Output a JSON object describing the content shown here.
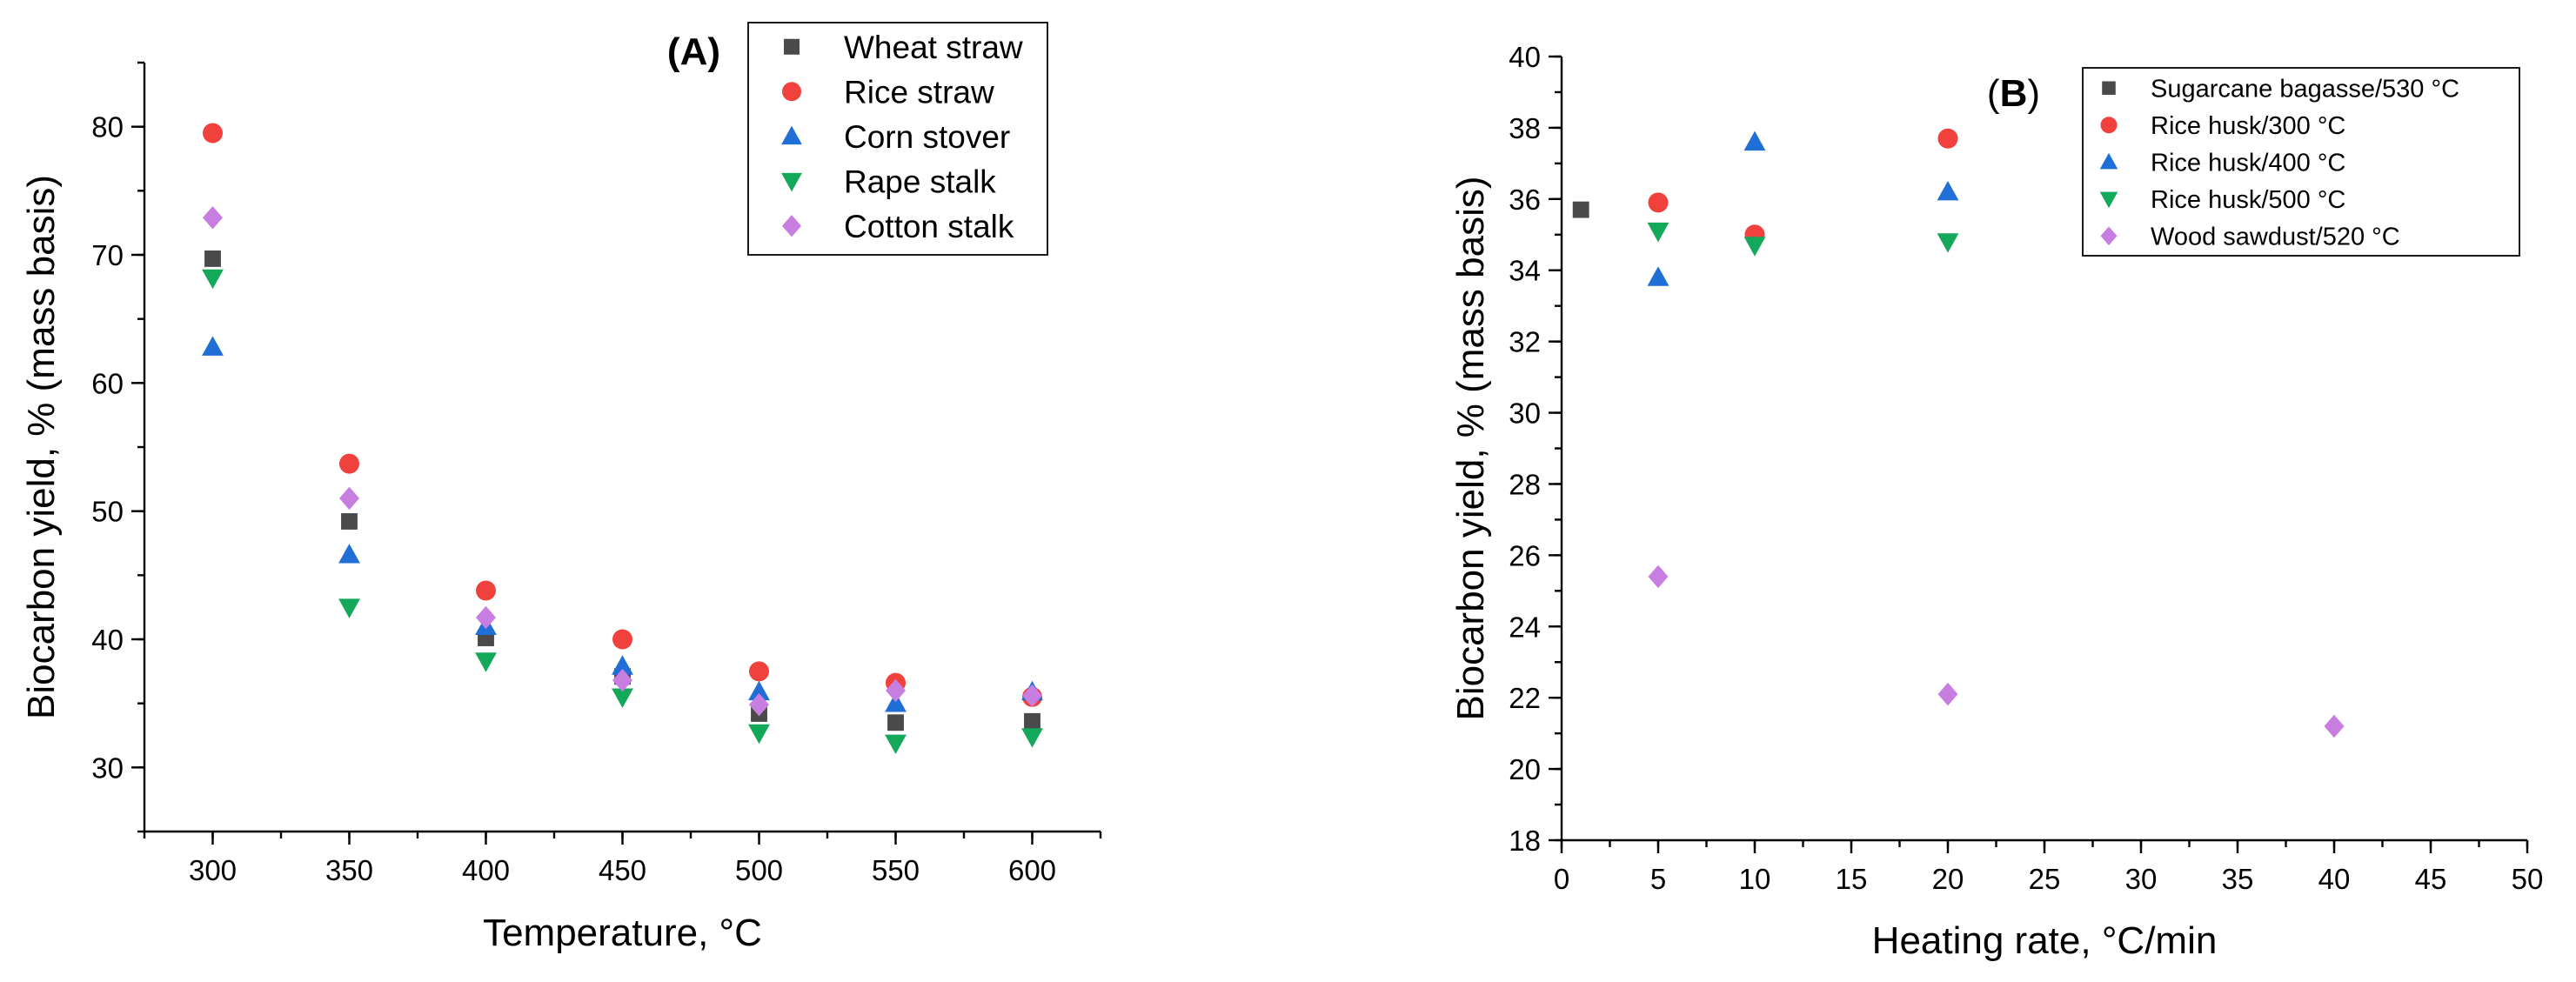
{
  "colors": {
    "square": "#4a4a4a",
    "circle": "#f0413c",
    "triangle_up": "#1f6fd6",
    "triangle_down": "#14a85a",
    "diamond": "#c77ee0"
  },
  "chart_data": [
    {
      "type": "scatter",
      "panel_label": "(A)",
      "xlabel": "Temperature, °C",
      "ylabel": "Biocarbon yield, % (mass basis)",
      "xlim": [
        275,
        625
      ],
      "ylim": [
        25,
        85
      ],
      "xticks": [
        300,
        350,
        400,
        450,
        500,
        550,
        600
      ],
      "yticks": [
        30,
        40,
        50,
        60,
        70,
        80
      ],
      "legend_position": "top-right",
      "series": [
        {
          "name": "Wheat straw",
          "marker": "square",
          "x": [
            300,
            350,
            400,
            450,
            500,
            550,
            600
          ],
          "y": [
            69.7,
            49.2,
            40.1,
            37.1,
            34.2,
            33.5,
            33.6
          ]
        },
        {
          "name": "Rice straw",
          "marker": "circle",
          "x": [
            300,
            350,
            400,
            450,
            500,
            550,
            600
          ],
          "y": [
            79.5,
            53.7,
            43.8,
            40.0,
            37.5,
            36.6,
            35.5
          ]
        },
        {
          "name": "Corn stover",
          "marker": "triangle_up",
          "x": [
            300,
            350,
            400,
            450,
            500,
            550,
            600
          ],
          "y": [
            62.8,
            46.6,
            41.0,
            37.9,
            35.9,
            35.0,
            35.9
          ]
        },
        {
          "name": "Rape stalk",
          "marker": "triangle_down",
          "x": [
            300,
            350,
            400,
            450,
            500,
            550,
            600
          ],
          "y": [
            68.2,
            42.5,
            38.3,
            35.5,
            32.7,
            31.9,
            32.4
          ]
        },
        {
          "name": "Cotton stalk",
          "marker": "diamond",
          "x": [
            300,
            350,
            400,
            450,
            500,
            550,
            600
          ],
          "y": [
            72.9,
            51.0,
            41.7,
            36.8,
            34.9,
            36.0,
            35.6
          ]
        }
      ]
    },
    {
      "type": "scatter",
      "panel_label": "(B)",
      "xlabel": "Heating rate, °C/min",
      "ylabel": "Biocarbon yield, % (mass basis)",
      "xlim": [
        0,
        50
      ],
      "ylim": [
        18,
        40
      ],
      "xticks": [
        0,
        5,
        10,
        15,
        20,
        25,
        30,
        35,
        40,
        45,
        50
      ],
      "yticks": [
        18,
        20,
        22,
        24,
        26,
        28,
        30,
        32,
        34,
        36,
        38,
        40
      ],
      "legend_position": "top-right",
      "series": [
        {
          "name": "Sugarcane bagasse/530 °C",
          "marker": "square",
          "x": [
            1
          ],
          "y": [
            35.7
          ]
        },
        {
          "name": "Rice husk/300 °C",
          "marker": "circle",
          "x": [
            5,
            10,
            20
          ],
          "y": [
            35.9,
            35.0,
            37.7
          ]
        },
        {
          "name": "Rice husk/400 °C",
          "marker": "triangle_up",
          "x": [
            5,
            10,
            20
          ],
          "y": [
            33.8,
            37.6,
            36.2
          ]
        },
        {
          "name": "Rice husk/500 °C",
          "marker": "triangle_down",
          "x": [
            5,
            10,
            20
          ],
          "y": [
            35.1,
            34.7,
            34.8
          ]
        },
        {
          "name": "Wood sawdust/520 °C",
          "marker": "diamond",
          "x": [
            5,
            20,
            40
          ],
          "y": [
            25.4,
            22.1,
            21.2
          ]
        }
      ]
    }
  ]
}
